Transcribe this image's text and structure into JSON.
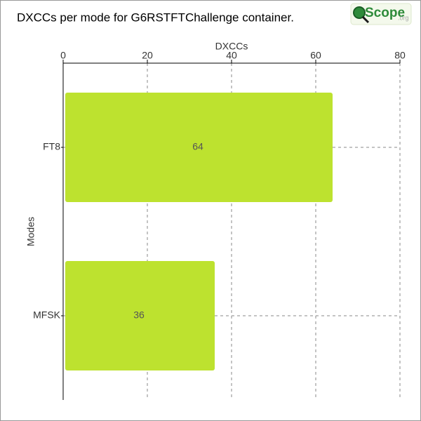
{
  "chart_data": {
    "type": "barh",
    "title": "DXCCs per mode for G6RSTFTChallenge container.",
    "xlabel": "DXCCs",
    "ylabel": "Modes",
    "categories": [
      "FT8",
      "MFSK"
    ],
    "values": [
      64,
      36
    ],
    "color": "#bde22f",
    "xlim": [
      0,
      80
    ],
    "xticks": [
      0,
      20,
      40,
      60,
      80
    ],
    "grid": true
  },
  "logo": {
    "text": "Scope",
    "suffix": ".org"
  }
}
